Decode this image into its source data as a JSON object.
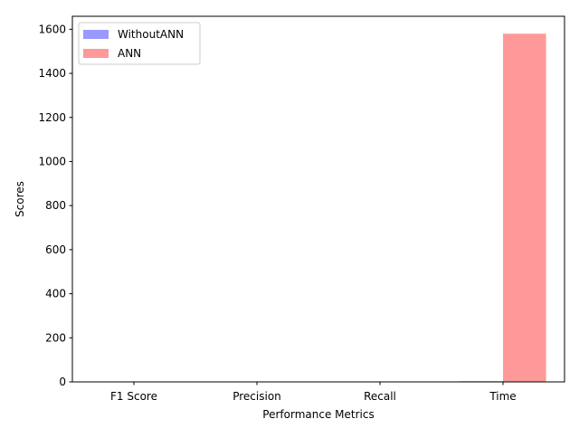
{
  "chart_data": {
    "type": "bar",
    "title": "",
    "xlabel": "Performance Metrics",
    "ylabel": "Scores",
    "categories": [
      "F1 Score",
      "Precision",
      "Recall",
      "Time"
    ],
    "series": [
      {
        "name": "WithoutANN",
        "color": "#9999ff",
        "values": [
          0.9,
          0.9,
          0.9,
          3
        ]
      },
      {
        "name": "ANN",
        "color": "#ff9999",
        "values": [
          0.9,
          0.9,
          0.9,
          1580
        ]
      }
    ],
    "ylim": [
      0,
      1659
    ],
    "yticks": [
      0,
      200,
      400,
      600,
      800,
      1000,
      1200,
      1400,
      1600
    ],
    "legend_position": "top-left",
    "grid": false
  }
}
